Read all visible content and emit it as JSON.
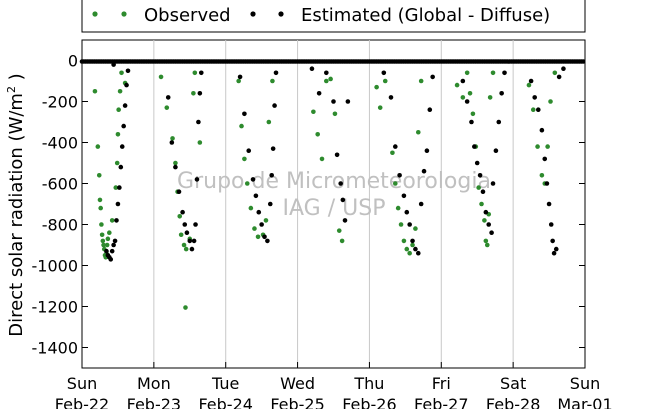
{
  "chart_data": {
    "type": "scatter",
    "title": "",
    "xlabel": "",
    "ylabel": "Direct solar radiation (W/m",
    "ylabel_superscript": "2",
    "ylabel_suffix": " )",
    "ylim": [
      -1500,
      100
    ],
    "yticks": [
      0,
      -200,
      -400,
      -600,
      -800,
      -1000,
      -1200,
      -1400
    ],
    "xlim": [
      0,
      7
    ],
    "xticks": [
      {
        "day": 0,
        "weekday": "Sun",
        "date": "Feb-22"
      },
      {
        "day": 1,
        "weekday": "Mon",
        "date": "Feb-23"
      },
      {
        "day": 2,
        "weekday": "Tue",
        "date": "Feb-24"
      },
      {
        "day": 3,
        "weekday": "Wed",
        "date": "Feb-25"
      },
      {
        "day": 4,
        "weekday": "Thu",
        "date": "Feb-26"
      },
      {
        "day": 5,
        "weekday": "Fri",
        "date": "Feb-27"
      },
      {
        "day": 6,
        "weekday": "Sat",
        "date": "Feb-28"
      },
      {
        "day": 7,
        "weekday": "Sun",
        "date": "Mar-01"
      }
    ],
    "grid": "vertical",
    "legend_position": "top-center",
    "watermark": [
      "Grupo de Micrometeorologia",
      "IAG / USP"
    ],
    "series": [
      {
        "name": "Observed",
        "color": "#2e8b2e",
        "points": [
          [
            0.18,
            -150
          ],
          [
            0.22,
            -420
          ],
          [
            0.24,
            -560
          ],
          [
            0.25,
            -680
          ],
          [
            0.26,
            -720
          ],
          [
            0.27,
            -800
          ],
          [
            0.28,
            -850
          ],
          [
            0.29,
            -880
          ],
          [
            0.3,
            -900
          ],
          [
            0.31,
            -920
          ],
          [
            0.32,
            -950
          ],
          [
            0.33,
            -960
          ],
          [
            0.34,
            -940
          ],
          [
            0.35,
            -900
          ],
          [
            0.36,
            -870
          ],
          [
            0.38,
            -840
          ],
          [
            0.42,
            -780
          ],
          [
            0.47,
            -620
          ],
          [
            0.49,
            -500
          ],
          [
            0.5,
            -360
          ],
          [
            0.51,
            -240
          ],
          [
            0.53,
            -150
          ],
          [
            0.55,
            -60
          ],
          [
            0.6,
            -110
          ],
          [
            1.1,
            -80
          ],
          [
            1.18,
            -230
          ],
          [
            1.26,
            -380
          ],
          [
            1.3,
            -500
          ],
          [
            1.33,
            -640
          ],
          [
            1.36,
            -760
          ],
          [
            1.38,
            -850
          ],
          [
            1.42,
            -900
          ],
          [
            1.45,
            -920
          ],
          [
            1.5,
            -870
          ],
          [
            1.55,
            -160
          ],
          [
            1.57,
            -60
          ],
          [
            1.64,
            -400
          ],
          [
            1.44,
            -1205
          ],
          [
            2.18,
            -100
          ],
          [
            2.22,
            -320
          ],
          [
            2.26,
            -480
          ],
          [
            2.3,
            -600
          ],
          [
            2.35,
            -720
          ],
          [
            2.4,
            -820
          ],
          [
            2.45,
            -860
          ],
          [
            2.52,
            -850
          ],
          [
            2.56,
            -780
          ],
          [
            2.6,
            -300
          ],
          [
            2.65,
            -100
          ],
          [
            3.22,
            -250
          ],
          [
            3.28,
            -360
          ],
          [
            3.34,
            -480
          ],
          [
            3.4,
            -100
          ],
          [
            3.46,
            -90
          ],
          [
            3.52,
            -260
          ],
          [
            3.58,
            -830
          ],
          [
            3.62,
            -880
          ],
          [
            4.1,
            -130
          ],
          [
            4.15,
            -230
          ],
          [
            4.22,
            -100
          ],
          [
            4.32,
            -450
          ],
          [
            4.36,
            -600
          ],
          [
            4.4,
            -720
          ],
          [
            4.44,
            -800
          ],
          [
            4.48,
            -880
          ],
          [
            4.52,
            -920
          ],
          [
            4.56,
            -940
          ],
          [
            4.6,
            -900
          ],
          [
            4.64,
            -820
          ],
          [
            4.68,
            -350
          ],
          [
            4.72,
            -100
          ],
          [
            5.22,
            -120
          ],
          [
            5.3,
            -180
          ],
          [
            5.36,
            -60
          ],
          [
            5.4,
            -160
          ],
          [
            5.44,
            -260
          ],
          [
            5.48,
            -420
          ],
          [
            5.52,
            -620
          ],
          [
            5.56,
            -700
          ],
          [
            5.6,
            -780
          ],
          [
            5.62,
            -880
          ],
          [
            5.64,
            -900
          ],
          [
            5.66,
            -750
          ],
          [
            5.68,
            -180
          ],
          [
            5.72,
            -60
          ],
          [
            6.22,
            -120
          ],
          [
            6.28,
            -240
          ],
          [
            6.34,
            -420
          ],
          [
            6.4,
            -560
          ],
          [
            6.44,
            -600
          ],
          [
            6.48,
            -420
          ],
          [
            6.52,
            -200
          ],
          [
            6.58,
            -60
          ]
        ]
      },
      {
        "name": "Estimated (Global - Diffuse)",
        "color": "#000000",
        "points": [
          [
            0.34,
            -930
          ],
          [
            0.36,
            -950
          ],
          [
            0.38,
            -960
          ],
          [
            0.4,
            -970
          ],
          [
            0.42,
            -930
          ],
          [
            0.44,
            -900
          ],
          [
            0.46,
            -880
          ],
          [
            0.48,
            -780
          ],
          [
            0.5,
            -700
          ],
          [
            0.52,
            -620
          ],
          [
            0.54,
            -520
          ],
          [
            0.56,
            -420
          ],
          [
            0.58,
            -320
          ],
          [
            0.6,
            -220
          ],
          [
            0.62,
            -120
          ],
          [
            0.64,
            -50
          ],
          [
            0.44,
            -20
          ],
          [
            1.2,
            -180
          ],
          [
            1.25,
            -400
          ],
          [
            1.3,
            -520
          ],
          [
            1.35,
            -640
          ],
          [
            1.4,
            -740
          ],
          [
            1.43,
            -800
          ],
          [
            1.46,
            -840
          ],
          [
            1.5,
            -880
          ],
          [
            1.53,
            -920
          ],
          [
            1.56,
            -880
          ],
          [
            1.58,
            -800
          ],
          [
            1.6,
            -580
          ],
          [
            1.62,
            -300
          ],
          [
            1.64,
            -160
          ],
          [
            1.66,
            -60
          ],
          [
            2.2,
            -80
          ],
          [
            2.26,
            -260
          ],
          [
            2.32,
            -440
          ],
          [
            2.38,
            -580
          ],
          [
            2.42,
            -660
          ],
          [
            2.46,
            -740
          ],
          [
            2.5,
            -800
          ],
          [
            2.54,
            -860
          ],
          [
            2.58,
            -880
          ],
          [
            2.62,
            -700
          ],
          [
            2.64,
            -560
          ],
          [
            2.66,
            -430
          ],
          [
            2.68,
            -220
          ],
          [
            2.7,
            -60
          ],
          [
            3.2,
            -40
          ],
          [
            3.3,
            -160
          ],
          [
            3.4,
            -60
          ],
          [
            3.5,
            -200
          ],
          [
            3.55,
            -460
          ],
          [
            3.6,
            -600
          ],
          [
            3.63,
            -680
          ],
          [
            3.66,
            -780
          ],
          [
            3.7,
            -200
          ],
          [
            4.2,
            -60
          ],
          [
            4.3,
            -180
          ],
          [
            4.36,
            -420
          ],
          [
            4.42,
            -560
          ],
          [
            4.48,
            -660
          ],
          [
            4.52,
            -740
          ],
          [
            4.56,
            -800
          ],
          [
            4.6,
            -880
          ],
          [
            4.64,
            -920
          ],
          [
            4.68,
            -940
          ],
          [
            4.72,
            -700
          ],
          [
            4.76,
            -540
          ],
          [
            4.8,
            -440
          ],
          [
            4.84,
            -240
          ],
          [
            4.88,
            -80
          ],
          [
            5.3,
            -100
          ],
          [
            5.36,
            -200
          ],
          [
            5.42,
            -300
          ],
          [
            5.46,
            -420
          ],
          [
            5.5,
            -500
          ],
          [
            5.54,
            -560
          ],
          [
            5.58,
            -640
          ],
          [
            5.62,
            -740
          ],
          [
            5.66,
            -800
          ],
          [
            5.7,
            -840
          ],
          [
            5.72,
            -600
          ],
          [
            5.76,
            -440
          ],
          [
            5.8,
            -300
          ],
          [
            5.84,
            -160
          ],
          [
            5.88,
            -60
          ],
          [
            6.25,
            -100
          ],
          [
            6.3,
            -180
          ],
          [
            6.35,
            -240
          ],
          [
            6.4,
            -340
          ],
          [
            6.44,
            -480
          ],
          [
            6.47,
            -600
          ],
          [
            6.5,
            -700
          ],
          [
            6.53,
            -800
          ],
          [
            6.55,
            -880
          ],
          [
            6.57,
            -940
          ],
          [
            6.6,
            -920
          ],
          [
            6.64,
            -80
          ],
          [
            6.7,
            -40
          ]
        ]
      }
    ]
  }
}
